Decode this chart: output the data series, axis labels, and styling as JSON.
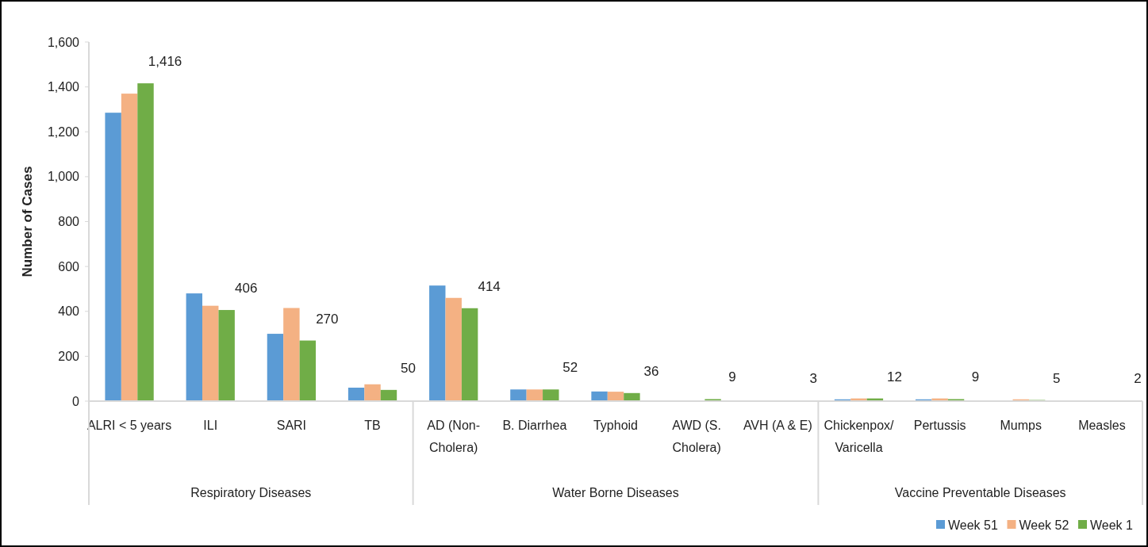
{
  "chart_data": {
    "type": "bar",
    "ylabel": "Number of Cases",
    "categories": [
      "ALRI < 5 years",
      "ILI",
      "SARI",
      "TB",
      "AD (Non-Cholera)",
      "B. Diarrhea",
      "Typhoid",
      "AWD (S. Cholera)",
      "AVH (A & E)",
      "Chickenpox/ Varicella",
      "Pertussis",
      "Mumps",
      "Measles"
    ],
    "annotations": [
      "Respiratory Diseases",
      "Water Borne Diseases",
      "Vaccine Preventable Diseases"
    ],
    "series": [
      {
        "name": "Week 51",
        "color": "#5b9bd5",
        "values": [
          1285,
          480,
          300,
          60,
          515,
          52,
          43,
          0,
          0,
          8,
          8,
          0,
          0
        ]
      },
      {
        "name": "Week 52",
        "color": "#f4b183",
        "values": [
          1370,
          425,
          415,
          75,
          460,
          52,
          42,
          0,
          0,
          12,
          12,
          8,
          0
        ]
      },
      {
        "name": "Week 1",
        "color": "#70ad47",
        "values": [
          1416,
          406,
          270,
          50,
          414,
          52,
          36,
          9,
          3,
          12,
          9,
          5,
          2
        ],
        "value_labels": [
          "1,416",
          "406",
          "270",
          "50",
          "414",
          "52",
          "36",
          "9",
          "3",
          "12",
          "9",
          "5",
          "2"
        ]
      }
    ],
    "ylim": [
      0,
      1600
    ],
    "yticks": [
      0,
      {
        "value": 200,
        "label": "200"
      },
      {
        "value": 400,
        "label": "400"
      },
      {
        "value": 600,
        "label": "600"
      },
      {
        "value": 800,
        "label": "800"
      },
      {
        "value": 1000,
        "label": "1,000"
      },
      {
        "value": 1200,
        "label": "1,200"
      },
      {
        "value": 1400,
        "label": "1,400"
      },
      {
        "value": 1600,
        "label": "1,600"
      }
    ],
    "legend": "bottom right"
  }
}
